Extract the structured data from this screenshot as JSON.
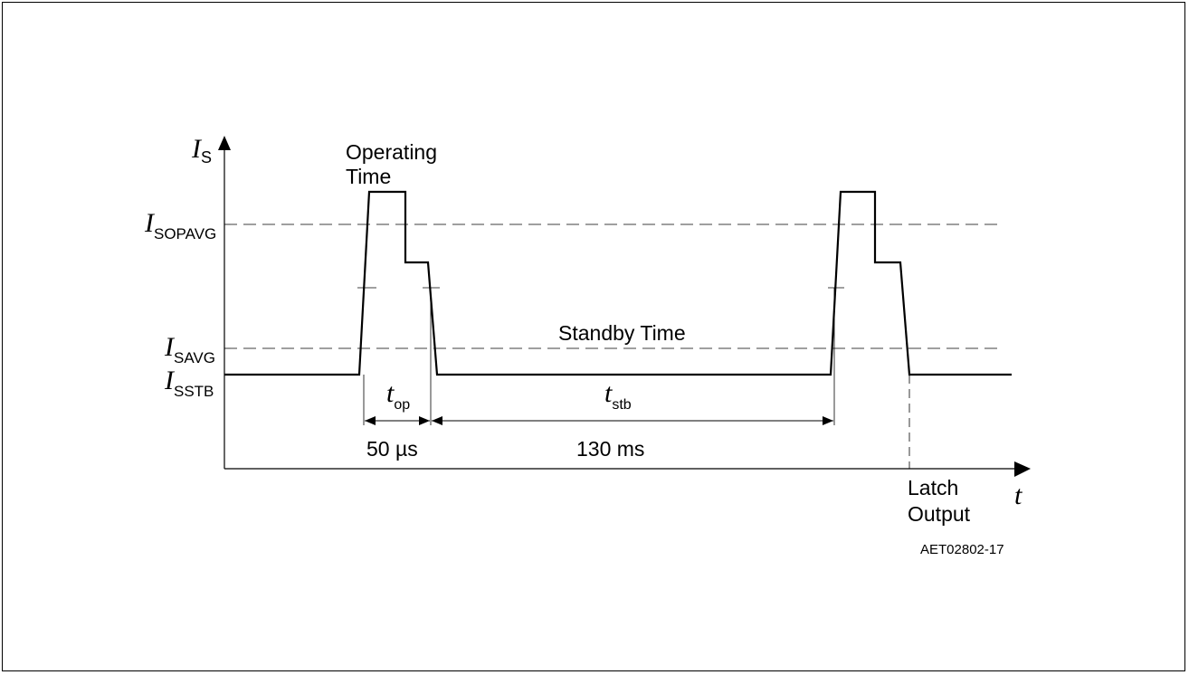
{
  "diagram": {
    "y_axis": {
      "symbol": "I",
      "subscript": "S"
    },
    "x_axis": {
      "symbol": "t"
    },
    "levels": [
      {
        "symbol": "I",
        "subscript": "SOPAVG"
      },
      {
        "symbol": "I",
        "subscript": "SAVG"
      },
      {
        "symbol": "I",
        "subscript": "SSTB"
      }
    ],
    "labels": {
      "operating_line1": "Operating",
      "operating_line2": "Time",
      "standby": "Standby Time",
      "latch_line1": "Latch",
      "latch_line2": "Output",
      "figure_id": "AET02802-17"
    },
    "intervals": {
      "t_op": {
        "symbol": "t",
        "subscript": "op",
        "value": "50 µs"
      },
      "t_stb": {
        "symbol": "t",
        "subscript": "stb",
        "value": "130 ms"
      }
    }
  }
}
